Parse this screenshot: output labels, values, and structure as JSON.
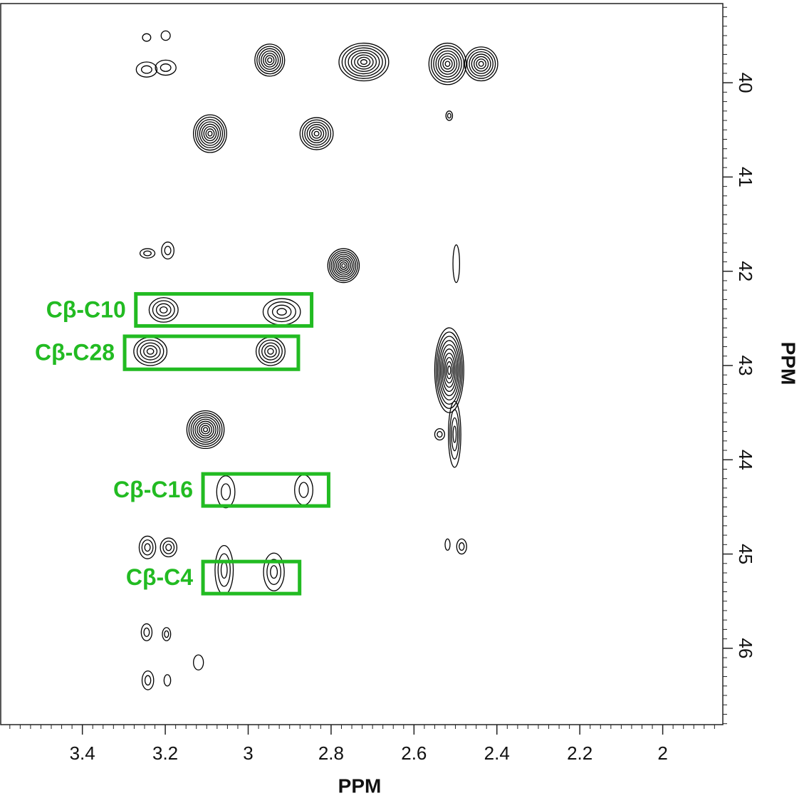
{
  "chart_data": {
    "type": "contour",
    "xlabel": "PPM",
    "ylabel": "PPM",
    "xlim": [
      3.597,
      1.855
    ],
    "ylim": [
      39.16,
      46.81
    ],
    "xticks": [
      3.4,
      3.2,
      3,
      2.8,
      2.6,
      2.4,
      2.2,
      2
    ],
    "yticks": [
      40,
      41,
      42,
      43,
      44,
      45,
      46
    ],
    "color": "#000000",
    "peaks": [
      {
        "x": 2.948,
        "y": 39.76,
        "wx": 0.036,
        "wy": 0.17,
        "levels": 7
      },
      {
        "x": 2.721,
        "y": 39.78,
        "wx": 0.06,
        "wy": 0.2,
        "levels": 8
      },
      {
        "x": 2.519,
        "y": 39.8,
        "wx": 0.045,
        "wy": 0.22,
        "levels": 8
      },
      {
        "x": 2.438,
        "y": 39.8,
        "wx": 0.04,
        "wy": 0.18,
        "levels": 7
      },
      {
        "x": 3.092,
        "y": 40.54,
        "wx": 0.04,
        "wy": 0.2,
        "levels": 8
      },
      {
        "x": 2.835,
        "y": 40.54,
        "wx": 0.04,
        "wy": 0.17,
        "levels": 7
      },
      {
        "x": 2.77,
        "y": 41.94,
        "wx": 0.038,
        "wy": 0.18,
        "levels": 9
      },
      {
        "x": 3.204,
        "y": 42.41,
        "wx": 0.035,
        "wy": 0.13,
        "levels": 4
      },
      {
        "x": 2.919,
        "y": 42.43,
        "wx": 0.045,
        "wy": 0.14,
        "levels": 4
      },
      {
        "x": 3.236,
        "y": 42.85,
        "wx": 0.04,
        "wy": 0.15,
        "levels": 5
      },
      {
        "x": 2.946,
        "y": 42.85,
        "wx": 0.035,
        "wy": 0.15,
        "levels": 5
      },
      {
        "x": 2.515,
        "y": 43.05,
        "wx": 0.035,
        "wy": 0.45,
        "levels": 10
      },
      {
        "x": 3.103,
        "y": 43.68,
        "wx": 0.045,
        "wy": 0.2,
        "levels": 9
      },
      {
        "x": 3.054,
        "y": 44.34,
        "wx": 0.022,
        "wy": 0.17,
        "levels": 2
      },
      {
        "x": 2.866,
        "y": 44.32,
        "wx": 0.022,
        "wy": 0.16,
        "levels": 2
      },
      {
        "x": 3.243,
        "y": 44.93,
        "wx": 0.02,
        "wy": 0.12,
        "levels": 3
      },
      {
        "x": 3.192,
        "y": 44.93,
        "wx": 0.02,
        "wy": 0.1,
        "levels": 3
      },
      {
        "x": 3.058,
        "y": 45.17,
        "wx": 0.022,
        "wy": 0.26,
        "levels": 3
      },
      {
        "x": 2.938,
        "y": 45.19,
        "wx": 0.025,
        "wy": 0.2,
        "levels": 3
      },
      {
        "x": 3.245,
        "y": 39.52,
        "wx": 0.01,
        "wy": 0.04,
        "levels": 1
      },
      {
        "x": 3.199,
        "y": 39.5,
        "wx": 0.011,
        "wy": 0.05,
        "levels": 1
      },
      {
        "x": 3.245,
        "y": 39.86,
        "wx": 0.025,
        "wy": 0.08,
        "levels": 2
      },
      {
        "x": 3.199,
        "y": 39.84,
        "wx": 0.025,
        "wy": 0.08,
        "levels": 2
      },
      {
        "x": 2.515,
        "y": 40.35,
        "wx": 0.008,
        "wy": 0.05,
        "levels": 2
      },
      {
        "x": 3.245,
        "y": 45.83,
        "wx": 0.013,
        "wy": 0.09,
        "levels": 2
      },
      {
        "x": 3.197,
        "y": 45.85,
        "wx": 0.01,
        "wy": 0.07,
        "levels": 2
      },
      {
        "x": 3.12,
        "y": 46.15,
        "wx": 0.012,
        "wy": 0.08,
        "levels": 1
      },
      {
        "x": 3.242,
        "y": 46.34,
        "wx": 0.014,
        "wy": 0.1,
        "levels": 2
      },
      {
        "x": 3.195,
        "y": 46.34,
        "wx": 0.008,
        "wy": 0.06,
        "levels": 1
      },
      {
        "x": 3.243,
        "y": 41.81,
        "wx": 0.018,
        "wy": 0.05,
        "levels": 2
      },
      {
        "x": 3.194,
        "y": 41.78,
        "wx": 0.015,
        "wy": 0.09,
        "levels": 2
      },
      {
        "x": 2.498,
        "y": 41.92,
        "wx": 0.008,
        "wy": 0.2,
        "levels": 1
      },
      {
        "x": 2.519,
        "y": 44.9,
        "wx": 0.006,
        "wy": 0.06,
        "levels": 1
      },
      {
        "x": 2.485,
        "y": 44.92,
        "wx": 0.012,
        "wy": 0.08,
        "levels": 2
      },
      {
        "x": 2.538,
        "y": 43.73,
        "wx": 0.012,
        "wy": 0.06,
        "levels": 2
      },
      {
        "x": 2.502,
        "y": 43.73,
        "wx": 0.015,
        "wy": 0.35,
        "levels": 4
      }
    ],
    "annotations": [
      {
        "text": "Cβ-C10",
        "x": [
          3.271,
          2.847
        ],
        "y": [
          42.24,
          42.58
        ]
      },
      {
        "text": "Cβ-C28",
        "x": [
          3.298,
          2.879
        ],
        "y": [
          42.69,
          43.04
        ]
      },
      {
        "text": "Cβ-C16",
        "x": [
          3.109,
          2.806
        ],
        "y": [
          44.15,
          44.49
        ]
      },
      {
        "text": "Cβ-C4",
        "x": [
          3.109,
          2.876
        ],
        "y": [
          45.08,
          45.42
        ]
      }
    ],
    "annotation_color": "#22bb22"
  }
}
